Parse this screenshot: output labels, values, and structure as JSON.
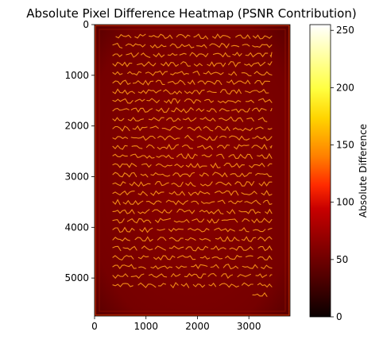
{
  "chart_data": {
    "type": "heatmap",
    "title": "Absolute Pixel Difference Heatmap (PSNR Contribution)",
    "xlabel": "",
    "ylabel": "",
    "x_range": [
      0,
      3800
    ],
    "y_range": [
      0,
      5750
    ],
    "y_inverted": true,
    "x_ticks": [
      0,
      1000,
      2000,
      3000
    ],
    "y_ticks": [
      0,
      1000,
      2000,
      3000,
      4000,
      5000
    ],
    "colormap": "hot",
    "colorbar": {
      "label": "Absolute Difference",
      "range": [
        0,
        255
      ],
      "ticks": [
        0,
        50,
        100,
        150,
        200,
        250
      ]
    },
    "background_value": 45,
    "text_stroke_value": 150,
    "border_value": 75,
    "grid": false
  },
  "colors": {
    "hot_stops": [
      "#0a0000",
      "#4a0000",
      "#8a0000",
      "#c80000",
      "#ff2a00",
      "#ff8000",
      "#ffd400",
      "#ffff40",
      "#ffffff"
    ],
    "heat_background": "#7d0000",
    "heat_text": "#ffa020"
  }
}
